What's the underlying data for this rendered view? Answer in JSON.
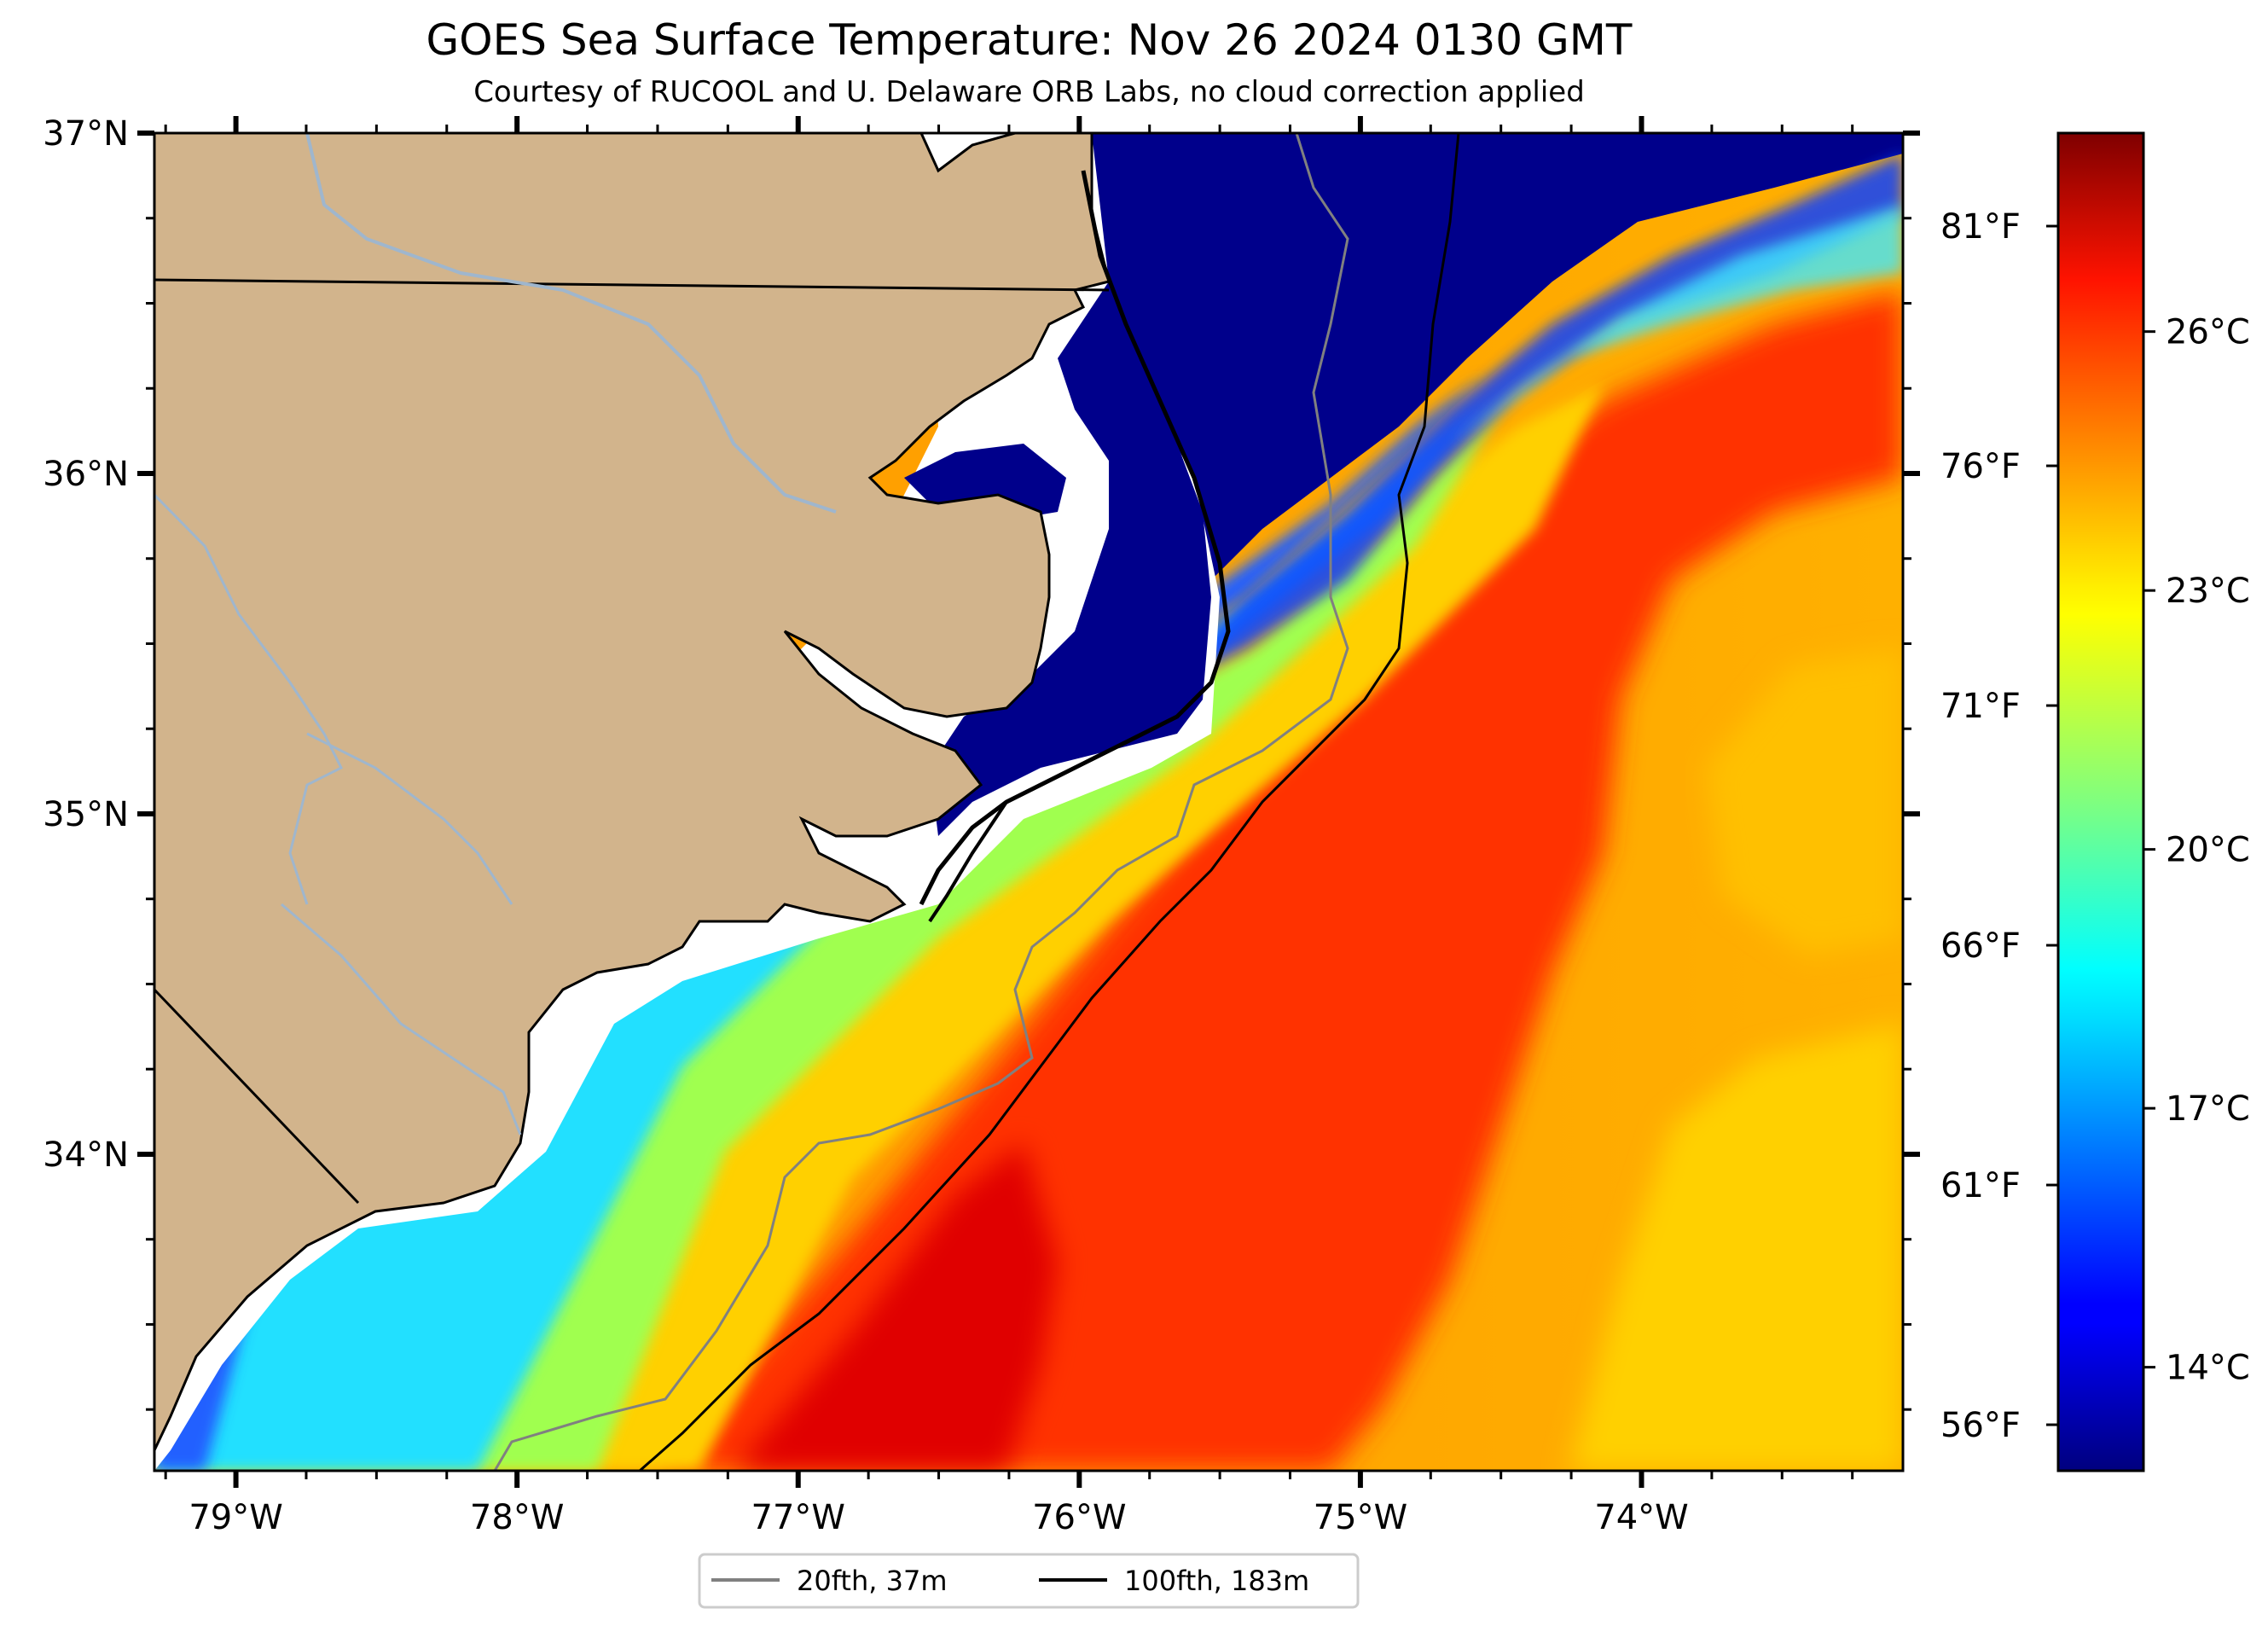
{
  "title": "GOES Sea Surface Temperature: Nov 26 2024 0130 GMT",
  "subtitle": "Courtesy of RUCOOL and U. Delaware ORB Labs, no cloud correction applied",
  "map": {
    "projection": "PlateCarree",
    "lon_range": [
      -79.29,
      -73.07
    ],
    "lat_range": [
      33.07,
      37.0
    ],
    "lon_ticks": [
      {
        "value": -79,
        "label": "79°W"
      },
      {
        "value": -78,
        "label": "78°W"
      },
      {
        "value": -77,
        "label": "77°W"
      },
      {
        "value": -76,
        "label": "76°W"
      },
      {
        "value": -75,
        "label": "75°W"
      },
      {
        "value": -74,
        "label": "74°W"
      }
    ],
    "lat_ticks": [
      {
        "value": 37,
        "label": "37°N"
      },
      {
        "value": 36,
        "label": "36°N"
      },
      {
        "value": 35,
        "label": "35°N"
      },
      {
        "value": 34,
        "label": "34°N"
      }
    ],
    "land_color": "#d2b48c",
    "rivers_color": "#9fb6cd",
    "no_data_color": "#ffffff"
  },
  "legend": {
    "items": [
      {
        "label": "20fth, 37m",
        "color": "#808080"
      },
      {
        "label": "100fth, 183m",
        "color": "#000000"
      }
    ]
  },
  "colorbar": {
    "colormap": "jet",
    "range_c": [
      12.8,
      28.3
    ],
    "celsius_ticks": [
      {
        "value": 14,
        "label": "14°C"
      },
      {
        "value": 17,
        "label": "17°C"
      },
      {
        "value": 20,
        "label": "20°C"
      },
      {
        "value": 23,
        "label": "23°C"
      },
      {
        "value": 26,
        "label": "26°C"
      }
    ],
    "fahrenheit_ticks": [
      {
        "value": 56,
        "label": "56°F"
      },
      {
        "value": 61,
        "label": "61°F"
      },
      {
        "value": 66,
        "label": "66°F"
      },
      {
        "value": 71,
        "label": "71°F"
      },
      {
        "value": 76,
        "label": "76°F"
      },
      {
        "value": 81,
        "label": "81°F"
      }
    ]
  }
}
